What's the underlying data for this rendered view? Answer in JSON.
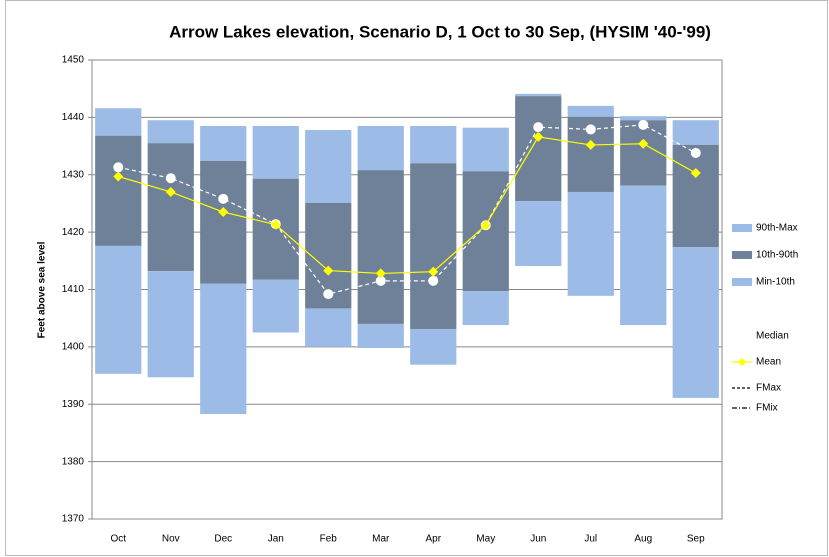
{
  "chart_data": {
    "type": "floating-bar",
    "title": "Arrow Lakes elevation, Scenario D, 1 Oct to 30 Sep, (HYSIM '40-'99)",
    "y_label": "Feet above sea level",
    "categories": [
      "Oct",
      "Nov",
      "Dec",
      "Jan",
      "Feb",
      "Mar",
      "Apr",
      "May",
      "Jun",
      "Jul",
      "Aug",
      "Sep"
    ],
    "ylim": [
      1370,
      1450
    ],
    "yticks": [
      1370,
      1380,
      1390,
      1400,
      1410,
      1420,
      1430,
      1440,
      1450
    ],
    "grid": true,
    "legend": "right",
    "series": [
      {
        "name": "90th-Max",
        "kind": "range",
        "color": "#9cbbe6",
        "values": [
          [
            1436.8,
            1441.6
          ],
          [
            1435.5,
            1439.5
          ],
          [
            1432.4,
            1438.5
          ],
          [
            1429.3,
            1438.5
          ],
          [
            1425.1,
            1437.8
          ],
          [
            1430.8,
            1438.5
          ],
          [
            1432.0,
            1438.5
          ],
          [
            1430.6,
            1438.2
          ],
          [
            1443.7,
            1444.1
          ],
          [
            1440.1,
            1442.0
          ],
          [
            1439.5,
            1440.2
          ],
          [
            1435.2,
            1439.5
          ]
        ]
      },
      {
        "name": "10th-90th",
        "kind": "range",
        "color": "#6e8198",
        "values": [
          [
            1417.6,
            1436.8
          ],
          [
            1413.2,
            1435.5
          ],
          [
            1411.0,
            1432.4
          ],
          [
            1411.7,
            1429.3
          ],
          [
            1406.7,
            1425.1
          ],
          [
            1404.0,
            1430.8
          ],
          [
            1403.1,
            1432.0
          ],
          [
            1409.7,
            1430.6
          ],
          [
            1425.4,
            1443.7
          ],
          [
            1427.0,
            1440.1
          ],
          [
            1428.1,
            1439.5
          ],
          [
            1417.4,
            1435.2
          ]
        ]
      },
      {
        "name": "Min-10th",
        "kind": "range",
        "color": "#9cbbe6",
        "values": [
          [
            1395.3,
            1417.6
          ],
          [
            1394.7,
            1413.2
          ],
          [
            1388.3,
            1411.0
          ],
          [
            1402.5,
            1411.7
          ],
          [
            1400.0,
            1406.7
          ],
          [
            1399.8,
            1404.0
          ],
          [
            1396.9,
            1403.1
          ],
          [
            1403.8,
            1409.7
          ],
          [
            1414.1,
            1425.4
          ],
          [
            1408.9,
            1427.0
          ],
          [
            1403.8,
            1428.1
          ],
          [
            1391.1,
            1417.4
          ]
        ]
      },
      {
        "name": "Median",
        "kind": "median",
        "color": "#ffffff",
        "values": [
          1431.3,
          1429.4,
          1425.8,
          1421.4,
          1409.2,
          1411.5,
          1411.5,
          1421.2,
          1438.3,
          1437.9,
          1438.7,
          1433.8
        ]
      },
      {
        "name": "Mean",
        "kind": "mean",
        "color": "#ffff00",
        "values": [
          1429.7,
          1427.0,
          1423.5,
          1421.3,
          1413.3,
          1412.8,
          1413.1,
          1421.2,
          1436.6,
          1435.2,
          1435.4,
          1430.3
        ]
      },
      {
        "name": "FMax",
        "kind": "dash",
        "color": "#000000",
        "values": [
          null,
          null,
          null,
          null,
          null,
          null,
          null,
          null,
          null,
          null,
          null,
          null
        ]
      },
      {
        "name": "FMix",
        "kind": "dashdot",
        "color": "#000000",
        "values": [
          null,
          null,
          null,
          null,
          null,
          null,
          null,
          null,
          null,
          null,
          null,
          null
        ]
      }
    ]
  }
}
